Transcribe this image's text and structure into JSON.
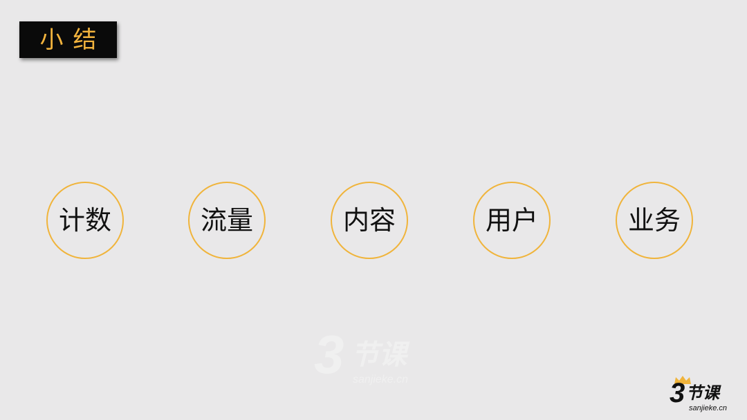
{
  "slide": {
    "title": "小结"
  },
  "topics": [
    {
      "label": "计数"
    },
    {
      "label": "流量"
    },
    {
      "label": "内容"
    },
    {
      "label": "用户"
    },
    {
      "label": "业务"
    }
  ],
  "watermark": {
    "logo_number": "3",
    "logo_text": "节课",
    "domain": "sanjieke.cn"
  },
  "brand_logo": {
    "logo_number": "3",
    "logo_text": "节课",
    "domain": "sanjieke.cn"
  },
  "colors": {
    "background": "#e9e8e9",
    "accent": "#f0b43b",
    "title_bg": "#0a0a0a",
    "text": "#111111"
  }
}
